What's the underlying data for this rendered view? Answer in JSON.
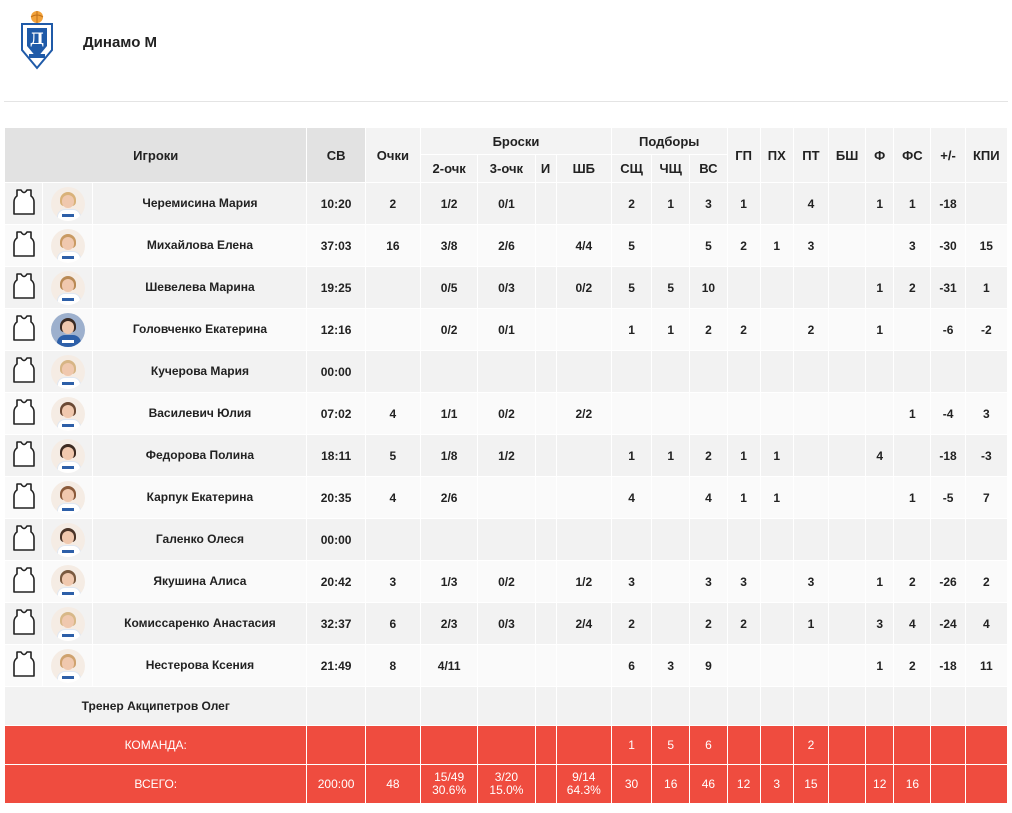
{
  "team": {
    "name": "Динамо М",
    "logo_icon": "dynamo-logo"
  },
  "headers": {
    "players": "Игроки",
    "sv": "СВ",
    "points": "Очки",
    "shots": "Броски",
    "two": "2-очк",
    "three": "3-очк",
    "i": "И",
    "ft": "ШБ",
    "rebounds": "Подборы",
    "oreb": "СЩ",
    "dreb": "ЧЩ",
    "treb": "ВС",
    "ast": "ГП",
    "stl": "ПХ",
    "tov": "ПТ",
    "blk": "БШ",
    "f": "Ф",
    "fs": "ФС",
    "pm": "+/-",
    "eff": "КПИ"
  },
  "players": [
    {
      "name": "Черемисина Мария",
      "sv": "10:20",
      "pts": "2",
      "two": "1/2",
      "three": "0/1",
      "i": "",
      "ft": "",
      "oreb": "2",
      "dreb": "1",
      "treb": "3",
      "ast": "1",
      "stl": "",
      "tov": "4",
      "blk": "",
      "f": "1",
      "fs": "1",
      "pm": "-18",
      "eff": "",
      "avatar": "light",
      "hair": "#d9b27a"
    },
    {
      "name": "Михайлова Елена",
      "sv": "37:03",
      "pts": "16",
      "two": "3/8",
      "three": "2/6",
      "i": "",
      "ft": "4/4",
      "oreb": "5",
      "dreb": "",
      "treb": "5",
      "ast": "2",
      "stl": "1",
      "tov": "3",
      "blk": "",
      "f": "",
      "fs": "3",
      "pm": "-30",
      "eff": "15",
      "avatar": "light",
      "hair": "#c99a62"
    },
    {
      "name": "Шевелева Марина",
      "sv": "19:25",
      "pts": "",
      "two": "0/5",
      "three": "0/3",
      "i": "",
      "ft": "0/2",
      "oreb": "5",
      "dreb": "5",
      "treb": "10",
      "ast": "",
      "stl": "",
      "tov": "",
      "blk": "",
      "f": "1",
      "fs": "2",
      "pm": "-31",
      "eff": "1",
      "avatar": "light",
      "hair": "#b98a55"
    },
    {
      "name": "Головченко Екатерина",
      "sv": "12:16",
      "pts": "",
      "two": "0/2",
      "three": "0/1",
      "i": "",
      "ft": "",
      "oreb": "1",
      "dreb": "1",
      "treb": "2",
      "ast": "2",
      "stl": "",
      "tov": "2",
      "blk": "",
      "f": "1",
      "fs": "",
      "pm": "-6",
      "eff": "-2",
      "avatar": "dark",
      "hair": "#3a2a22"
    },
    {
      "name": "Кучерова Мария",
      "sv": "00:00",
      "pts": "",
      "two": "",
      "three": "",
      "i": "",
      "ft": "",
      "oreb": "",
      "dreb": "",
      "treb": "",
      "ast": "",
      "stl": "",
      "tov": "",
      "blk": "",
      "f": "",
      "fs": "",
      "pm": "",
      "eff": "",
      "avatar": "light",
      "hair": "#d7b585"
    },
    {
      "name": "Василевич Юлия",
      "sv": "07:02",
      "pts": "4",
      "two": "1/1",
      "three": "0/2",
      "i": "",
      "ft": "2/2",
      "oreb": "",
      "dreb": "",
      "treb": "",
      "ast": "",
      "stl": "",
      "tov": "",
      "blk": "",
      "f": "",
      "fs": "1",
      "pm": "-4",
      "eff": "3",
      "avatar": "light",
      "hair": "#6b4a35"
    },
    {
      "name": "Федорова Полина",
      "sv": "18:11",
      "pts": "5",
      "two": "1/8",
      "three": "1/2",
      "i": "",
      "ft": "",
      "oreb": "1",
      "dreb": "1",
      "treb": "2",
      "ast": "1",
      "stl": "1",
      "tov": "",
      "blk": "",
      "f": "4",
      "fs": "",
      "pm": "-18",
      "eff": "-3",
      "avatar": "light",
      "hair": "#3d2a20"
    },
    {
      "name": "Карпук Екатерина",
      "sv": "20:35",
      "pts": "4",
      "two": "2/6",
      "three": "",
      "i": "",
      "ft": "",
      "oreb": "4",
      "dreb": "",
      "treb": "4",
      "ast": "1",
      "stl": "1",
      "tov": "",
      "blk": "",
      "f": "",
      "fs": "1",
      "pm": "-5",
      "eff": "7",
      "avatar": "light",
      "hair": "#8a5a3a"
    },
    {
      "name": "Галенко Олеся",
      "sv": "00:00",
      "pts": "",
      "two": "",
      "three": "",
      "i": "",
      "ft": "",
      "oreb": "",
      "dreb": "",
      "treb": "",
      "ast": "",
      "stl": "",
      "tov": "",
      "blk": "",
      "f": "",
      "fs": "",
      "pm": "",
      "eff": "",
      "avatar": "light",
      "hair": "#4a3428"
    },
    {
      "name": "Якушина Алиса",
      "sv": "20:42",
      "pts": "3",
      "two": "1/3",
      "three": "0/2",
      "i": "",
      "ft": "1/2",
      "oreb": "3",
      "dreb": "",
      "treb": "3",
      "ast": "3",
      "stl": "",
      "tov": "3",
      "blk": "",
      "f": "1",
      "fs": "2",
      "pm": "-26",
      "eff": "2",
      "avatar": "light",
      "hair": "#7a5a40"
    },
    {
      "name": "Комиссаренко Анастасия",
      "sv": "32:37",
      "pts": "6",
      "two": "2/3",
      "three": "0/3",
      "i": "",
      "ft": "2/4",
      "oreb": "2",
      "dreb": "",
      "treb": "2",
      "ast": "2",
      "stl": "",
      "tov": "1",
      "blk": "",
      "f": "3",
      "fs": "4",
      "pm": "-24",
      "eff": "4",
      "avatar": "light",
      "hair": "#d8b888"
    },
    {
      "name": "Нестерова Ксения",
      "sv": "21:49",
      "pts": "8",
      "two": "4/11",
      "three": "",
      "i": "",
      "ft": "",
      "oreb": "6",
      "dreb": "3",
      "treb": "9",
      "ast": "",
      "stl": "",
      "tov": "",
      "blk": "",
      "f": "1",
      "fs": "2",
      "pm": "-18",
      "eff": "11",
      "avatar": "light",
      "hair": "#cfa26e"
    }
  ],
  "coach": "Тренер Акципетров Олег",
  "team_row": {
    "label": "КОМАНДА:",
    "sv": "",
    "pts": "",
    "two": "",
    "three": "",
    "i": "",
    "ft": "",
    "oreb": "1",
    "dreb": "5",
    "treb": "6",
    "ast": "",
    "stl": "",
    "tov": "2",
    "blk": "",
    "f": "",
    "fs": "",
    "pm": "",
    "eff": ""
  },
  "total_row": {
    "label": "ВСЕГО:",
    "sv": "200:00",
    "pts": "48",
    "two": "15/49",
    "two_pct": "30.6%",
    "three": "3/20",
    "three_pct": "15.0%",
    "i": "",
    "ft": "9/14",
    "ft_pct": "64.3%",
    "oreb": "30",
    "dreb": "16",
    "treb": "46",
    "ast": "12",
    "stl": "3",
    "tov": "15",
    "blk": "",
    "f": "12",
    "fs": "16",
    "pm": "",
    "eff": ""
  },
  "colors": {
    "total_bg": "#ef4c3f",
    "header_bg": "#f3f3f3",
    "logo_blue": "#1f5aa8"
  }
}
